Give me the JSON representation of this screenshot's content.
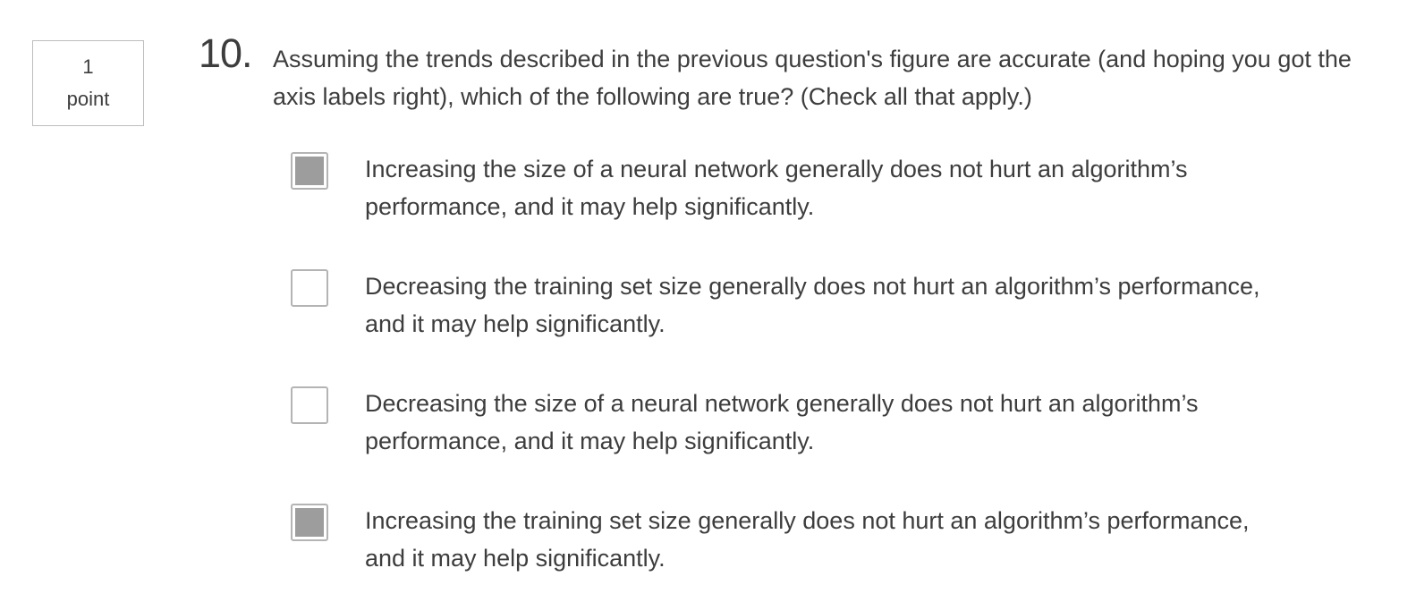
{
  "points": {
    "value": "1",
    "unit": "point"
  },
  "question": {
    "number": "10.",
    "text": "Assuming the trends described in the previous question's figure are accurate (and hoping you got the axis labels right), which of the following are true? (Check all that apply.)"
  },
  "options": [
    {
      "text": "Increasing the size of a neural network generally does not hurt an algorithm’s performance, and it may help significantly.",
      "checked": true
    },
    {
      "text": "Decreasing the training set size generally does not hurt an algorithm’s performance, and it may help significantly.",
      "checked": false
    },
    {
      "text": "Decreasing the size of a neural network generally does not hurt an algorithm’s performance, and it may help significantly.",
      "checked": false
    },
    {
      "text": "Increasing the training set size generally does not hurt an algorithm’s performance, and it may help significantly.",
      "checked": true
    }
  ],
  "colors": {
    "checked_fill": "#9d9d9d",
    "checkbox_border": "#b4b4b4",
    "text": "#3d3d3d"
  }
}
